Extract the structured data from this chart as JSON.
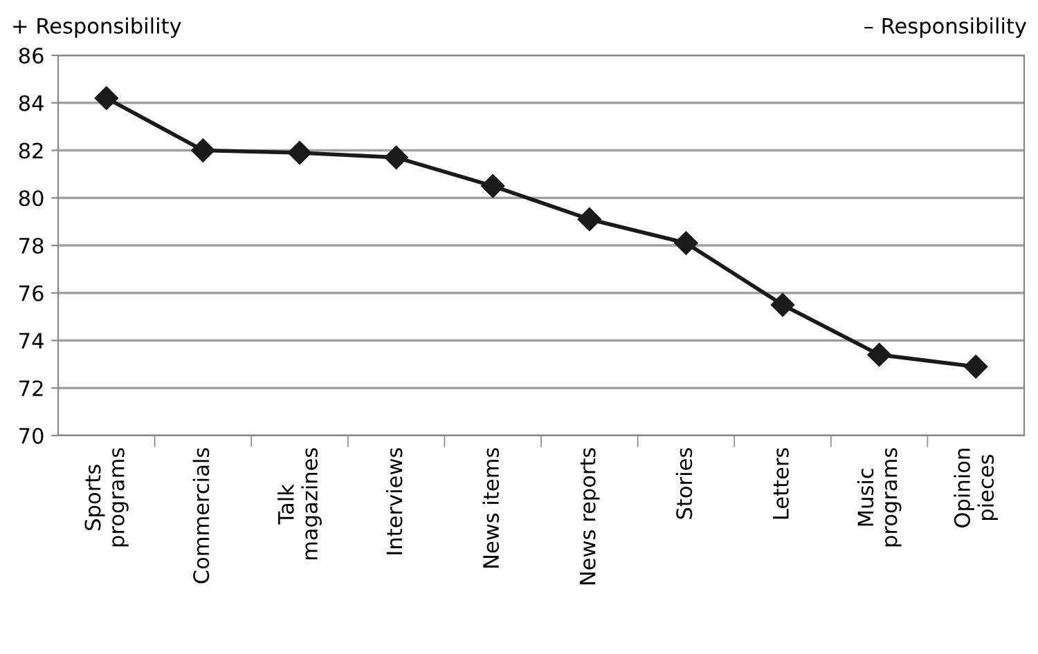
{
  "chart_data": {
    "type": "line",
    "categories": [
      "Sports\nprograms",
      "Commercials",
      "Talk\nmagazines",
      "Interviews",
      "News items",
      "News reports",
      "Stories",
      "Letters",
      "Music\nprograms",
      "Opinion\npieces"
    ],
    "series": [
      {
        "color": "#1a1a1a",
        "values": [
          84.2,
          82.0,
          81.9,
          81.7,
          80.5,
          79.1,
          78.1,
          75.5,
          73.4,
          72.9
        ]
      }
    ],
    "ylim": [
      70,
      86
    ],
    "yticks": [
      70,
      72,
      74,
      76,
      78,
      80,
      82,
      84,
      86
    ],
    "grid": "y",
    "marker": "diamond",
    "line_style": "solid",
    "annotations": [
      "+ Responsibility",
      "– Responsibility"
    ]
  }
}
